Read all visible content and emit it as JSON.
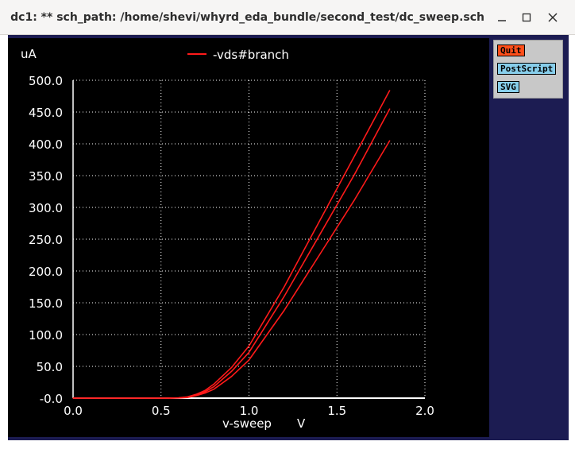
{
  "window": {
    "title": "dc1: ** sch_path: /home/shevi/whyrd_eda_bundle/second_test/dc_sweep.sch",
    "controls": [
      "minimize",
      "maximize",
      "close"
    ]
  },
  "side_panel": {
    "quit_label": "Quit",
    "postscript_label": "PostScript",
    "svg_label": "SVG"
  },
  "colors": {
    "plot_background": "#000000",
    "frame": "#1c1c52",
    "trace": "#ff1a1a",
    "grid": "#ffffff",
    "quit_button": "#ff4f1a",
    "postscript_button": "#87ceeb",
    "svg_button": "#87ceeb"
  },
  "chart_data": {
    "type": "line",
    "title": "",
    "ylabel": "uA",
    "xlabel": "v-sweep",
    "xunit": "V",
    "xlim": [
      0.0,
      2.0
    ],
    "ylim": [
      0.0,
      500.0
    ],
    "x_ticks": [
      "0.0",
      "0.5",
      "1.0",
      "1.5",
      "2.0"
    ],
    "y_ticks": [
      "-0.0",
      "50.0",
      "100.0",
      "150.0",
      "200.0",
      "250.0",
      "300.0",
      "350.0",
      "400.0",
      "450.0",
      "500.0"
    ],
    "grid": true,
    "legend": "top-center",
    "series": [
      {
        "name": "-vds#branch",
        "x": [
          0.0,
          0.55,
          0.6,
          0.65,
          0.7,
          0.75,
          0.8,
          0.9,
          1.0,
          1.2,
          1.4,
          1.6,
          1.8
        ],
        "y": [
          0,
          0,
          0.5,
          2,
          6,
          12,
          22,
          48,
          82,
          175,
          278,
          381,
          484
        ]
      },
      {
        "name": "",
        "x": [
          0.0,
          0.55,
          0.6,
          0.65,
          0.7,
          0.75,
          0.8,
          0.9,
          1.0,
          1.2,
          1.4,
          1.6,
          1.8
        ],
        "y": [
          0,
          0,
          0.4,
          1.5,
          5,
          10,
          18,
          42,
          72,
          160,
          256,
          352,
          455
        ]
      },
      {
        "name": "",
        "x": [
          0.0,
          0.55,
          0.6,
          0.65,
          0.7,
          0.75,
          0.8,
          0.9,
          1.0,
          1.2,
          1.4,
          1.6,
          1.8
        ],
        "y": [
          0,
          0,
          0.3,
          1,
          4,
          8,
          14,
          34,
          60,
          138,
          225,
          312,
          405
        ]
      }
    ]
  }
}
